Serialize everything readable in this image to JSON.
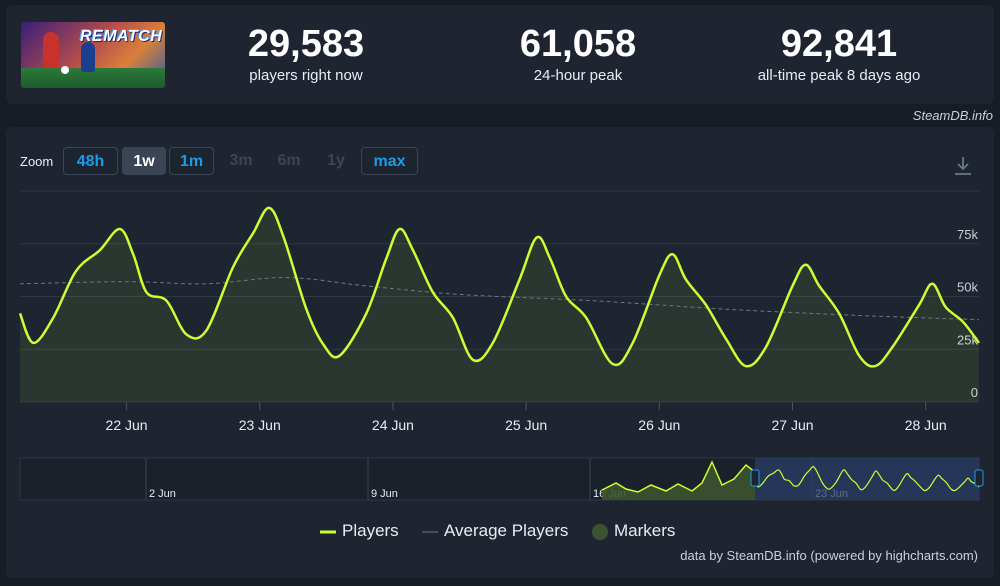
{
  "game": {
    "logo_text": "REMATCH"
  },
  "stats": [
    {
      "value": "29,583",
      "label": "players right now"
    },
    {
      "value": "61,058",
      "label": "24-hour peak"
    },
    {
      "value": "92,841",
      "label": "all-time peak 8 days ago"
    }
  ],
  "attribution_top": "SteamDB.info",
  "zoom": {
    "label": "Zoom",
    "buttons": [
      {
        "label": "48h",
        "state": "enabled"
      },
      {
        "label": "1w",
        "state": "active"
      },
      {
        "label": "1m",
        "state": "enabled"
      },
      {
        "label": "3m",
        "state": "disabled"
      },
      {
        "label": "6m",
        "state": "disabled"
      },
      {
        "label": "1y",
        "state": "disabled"
      },
      {
        "label": "max",
        "state": "enabled"
      }
    ]
  },
  "icons": {
    "download": "download-icon"
  },
  "colors": {
    "players": "#ccff33",
    "average": "#6b7787",
    "markers": "#3d5230",
    "accent": "#1b9ce8"
  },
  "chart_data": {
    "type": "line",
    "x_ticks": [
      "22 Jun",
      "23 Jun",
      "24 Jun",
      "25 Jun",
      "26 Jun",
      "27 Jun",
      "28 Jun"
    ],
    "y_ticks": [
      "0",
      "25k",
      "50k",
      "75k"
    ],
    "ylim": [
      0,
      100000
    ],
    "x_unit": "days since 21 Jun 00:00",
    "xlim": [
      0.2,
      7.4
    ],
    "series": [
      {
        "name": "Players",
        "points": [
          [
            0.2,
            42000
          ],
          [
            0.3,
            28000
          ],
          [
            0.45,
            40000
          ],
          [
            0.62,
            62000
          ],
          [
            0.8,
            72000
          ],
          [
            0.95,
            82000
          ],
          [
            1.05,
            70000
          ],
          [
            1.15,
            52000
          ],
          [
            1.3,
            48000
          ],
          [
            1.45,
            32000
          ],
          [
            1.6,
            34000
          ],
          [
            1.8,
            64000
          ],
          [
            1.95,
            80000
          ],
          [
            2.07,
            92000
          ],
          [
            2.18,
            78000
          ],
          [
            2.35,
            44000
          ],
          [
            2.48,
            27000
          ],
          [
            2.6,
            22000
          ],
          [
            2.8,
            42000
          ],
          [
            2.95,
            68000
          ],
          [
            3.05,
            82000
          ],
          [
            3.15,
            72000
          ],
          [
            3.3,
            52000
          ],
          [
            3.45,
            40000
          ],
          [
            3.6,
            20000
          ],
          [
            3.75,
            28000
          ],
          [
            3.95,
            58000
          ],
          [
            4.08,
            78000
          ],
          [
            4.18,
            68000
          ],
          [
            4.3,
            50000
          ],
          [
            4.45,
            40000
          ],
          [
            4.65,
            18000
          ],
          [
            4.8,
            28000
          ],
          [
            5.0,
            60000
          ],
          [
            5.1,
            70000
          ],
          [
            5.2,
            58000
          ],
          [
            5.35,
            46000
          ],
          [
            5.5,
            30000
          ],
          [
            5.65,
            17000
          ],
          [
            5.8,
            26000
          ],
          [
            6.0,
            55000
          ],
          [
            6.1,
            65000
          ],
          [
            6.2,
            55000
          ],
          [
            6.35,
            42000
          ],
          [
            6.5,
            22000
          ],
          [
            6.62,
            17000
          ],
          [
            6.75,
            26000
          ],
          [
            6.95,
            46000
          ],
          [
            7.05,
            56000
          ],
          [
            7.15,
            45000
          ],
          [
            7.28,
            38000
          ],
          [
            7.4,
            28000
          ]
        ]
      },
      {
        "name": "Average Players",
        "points": [
          [
            0.2,
            56000
          ],
          [
            1.0,
            57000
          ],
          [
            1.6,
            56000
          ],
          [
            2.2,
            59000
          ],
          [
            2.8,
            55000
          ],
          [
            3.5,
            51000
          ],
          [
            4.5,
            48000
          ],
          [
            5.5,
            44000
          ],
          [
            6.5,
            41000
          ],
          [
            7.4,
            39000
          ]
        ]
      }
    ]
  },
  "navigator": {
    "ticks": [
      "2 Jun",
      "9 Jun",
      "16 Jun",
      "23 Jun"
    ]
  },
  "legend": [
    {
      "label": "Players"
    },
    {
      "label": "Average Players"
    },
    {
      "label": "Markers"
    }
  ],
  "footer": "data by SteamDB.info (powered by highcharts.com)"
}
